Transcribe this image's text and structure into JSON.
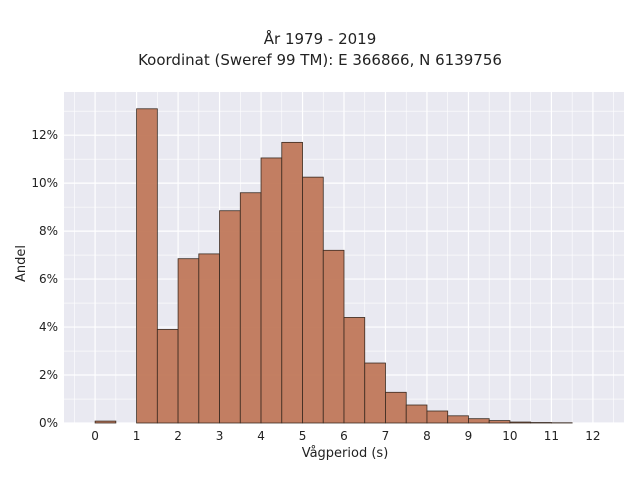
{
  "chart_data": {
    "type": "bar",
    "title": "År 1979 - 2019",
    "subtitle": "Koordinat (Sweref 99 TM): E 366866, N 6139756",
    "xlabel": "Vågperiod (s)",
    "ylabel": "Andel",
    "xlim": [
      -0.75,
      12.75
    ],
    "ylim": [
      0,
      13.8
    ],
    "x_ticks": [
      0,
      1,
      2,
      3,
      4,
      5,
      6,
      7,
      8,
      9,
      10,
      11,
      12
    ],
    "y_ticks": [
      0,
      2,
      4,
      6,
      8,
      10,
      12
    ],
    "y_tick_labels": [
      "0%",
      "2%",
      "4%",
      "6%",
      "8%",
      "10%",
      "12%"
    ],
    "grid": true,
    "bar_color": "#c0785a",
    "bar_edge_color": "#3a2a20",
    "background_color": "#e9e9f1",
    "bin_width": 0.5,
    "bins": [
      {
        "start": 0.0,
        "value": 0.08
      },
      {
        "start": 1.0,
        "value": 13.1
      },
      {
        "start": 1.5,
        "value": 3.9
      },
      {
        "start": 2.0,
        "value": 6.85
      },
      {
        "start": 2.5,
        "value": 7.05
      },
      {
        "start": 3.0,
        "value": 8.85
      },
      {
        "start": 3.5,
        "value": 9.6
      },
      {
        "start": 4.0,
        "value": 11.05
      },
      {
        "start": 4.5,
        "value": 11.7
      },
      {
        "start": 5.0,
        "value": 10.25
      },
      {
        "start": 5.5,
        "value": 7.2
      },
      {
        "start": 6.0,
        "value": 4.4
      },
      {
        "start": 6.5,
        "value": 2.5
      },
      {
        "start": 7.0,
        "value": 1.28
      },
      {
        "start": 7.5,
        "value": 0.75
      },
      {
        "start": 8.0,
        "value": 0.5
      },
      {
        "start": 8.5,
        "value": 0.3
      },
      {
        "start": 9.0,
        "value": 0.18
      },
      {
        "start": 9.5,
        "value": 0.1
      },
      {
        "start": 10.0,
        "value": 0.04
      },
      {
        "start": 10.5,
        "value": 0.02
      },
      {
        "start": 11.0,
        "value": 0.01
      }
    ]
  }
}
